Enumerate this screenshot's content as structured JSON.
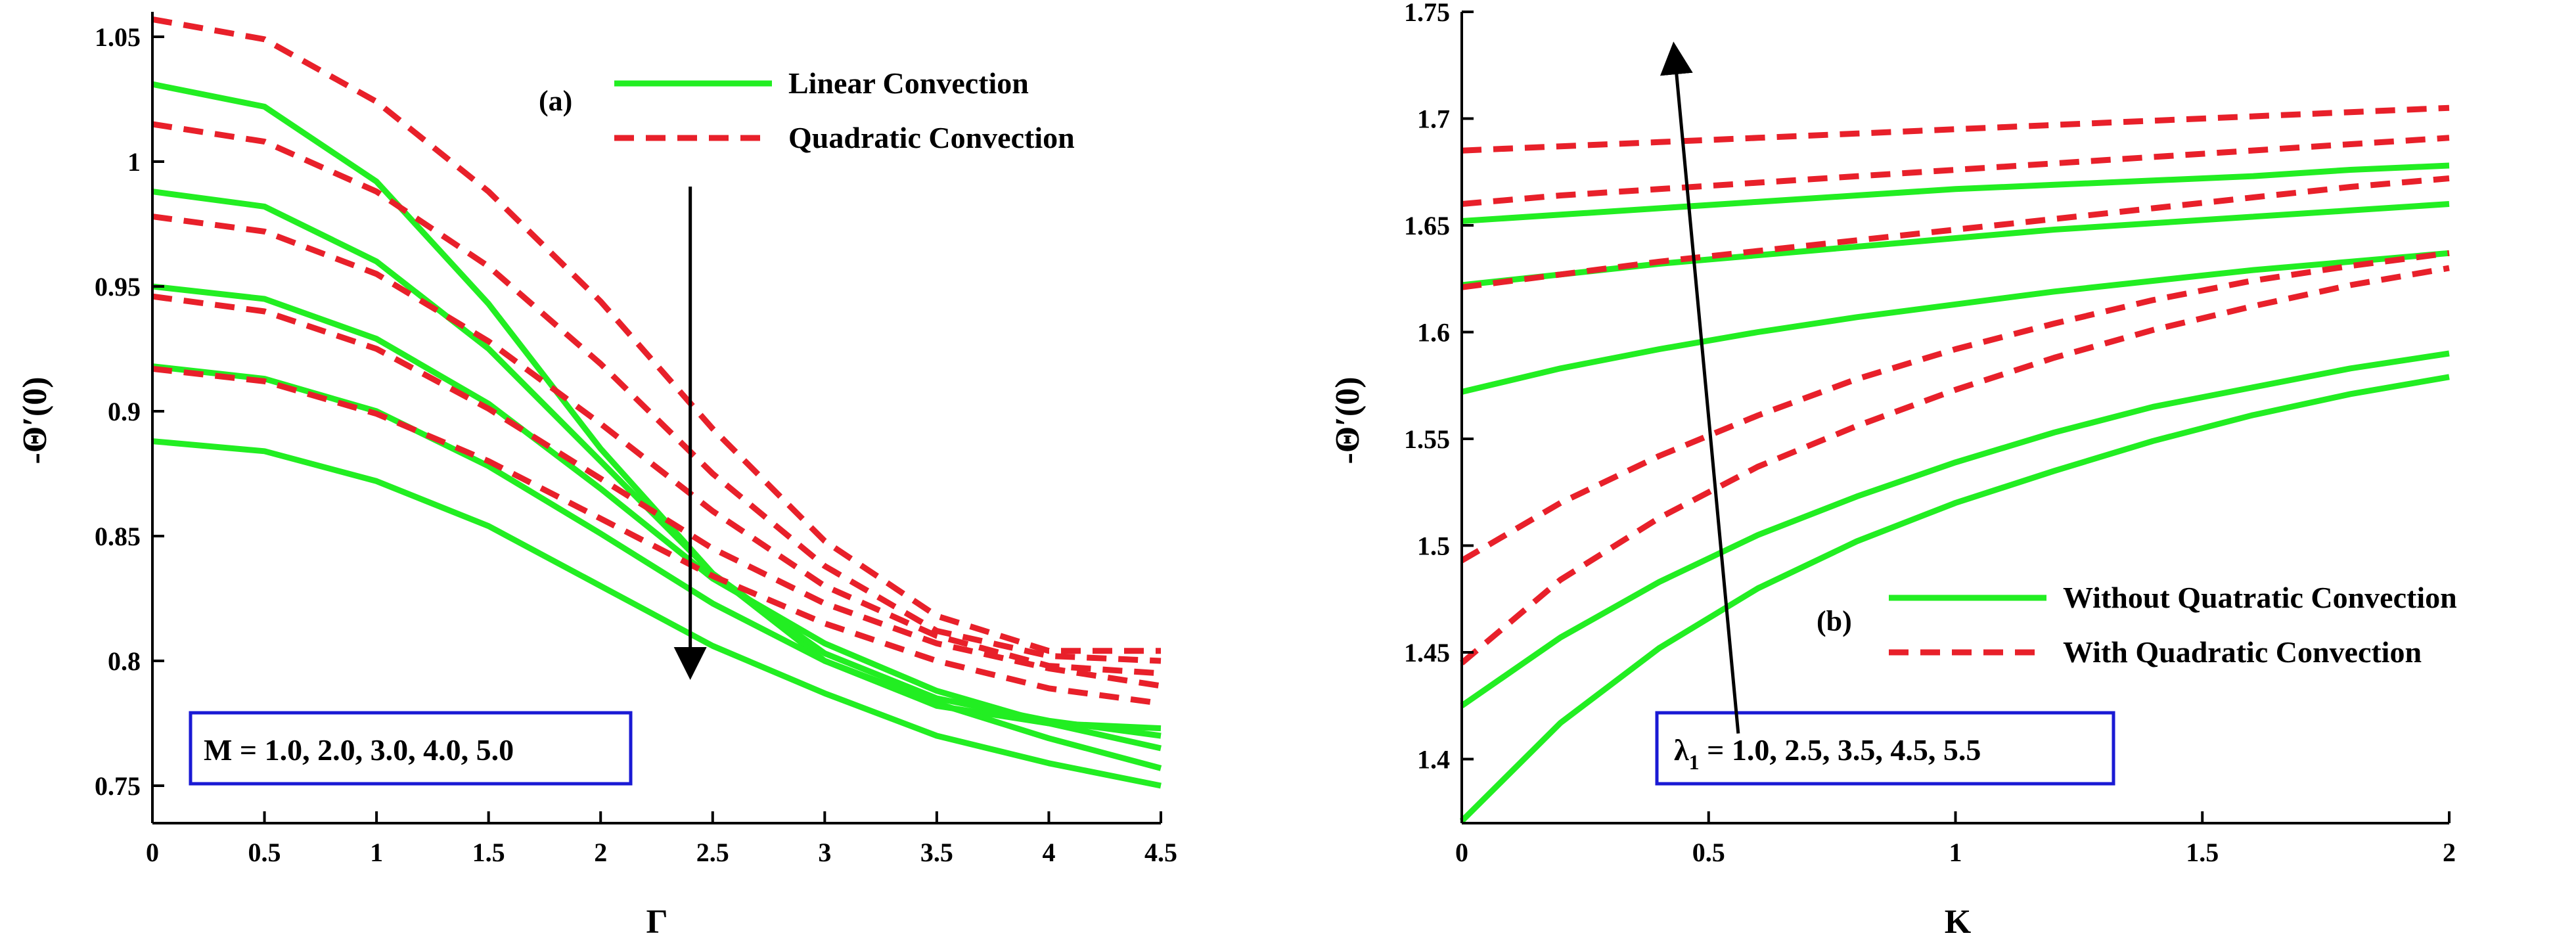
{
  "chart_data": [
    {
      "type": "line",
      "panel_label": "(a)",
      "xlabel": "Γ",
      "ylabel": "-Θ′(0)",
      "xlim": [
        0,
        4.5
      ],
      "ylim": [
        0.735,
        1.06
      ],
      "xticks": [
        0,
        0.5,
        1,
        1.5,
        2,
        2.5,
        3,
        3.5,
        4,
        4.5
      ],
      "xtick_labels": [
        "0",
        "0.5",
        "1",
        "1.5",
        "2",
        "2.5",
        "3",
        "3.5",
        "4",
        "4.5"
      ],
      "yticks": [
        0.75,
        0.8,
        0.85,
        0.9,
        0.95,
        1,
        1.05
      ],
      "ytick_labels": [
        "0.75",
        "0.8",
        "0.85",
        "0.9",
        "0.95",
        "1",
        "1.05"
      ],
      "legend": [
        "Linear Convection",
        "Quadratic Convection"
      ],
      "legend_position": "top-right",
      "parameter_box": "M = 1.0, 2.0, 3.0, 4.0, 5.0",
      "arrow": {
        "from": [
          2.4,
          0.99
        ],
        "to": [
          2.4,
          0.795
        ]
      },
      "x": [
        0,
        0.5,
        1,
        1.5,
        2,
        2.5,
        3,
        3.5,
        4,
        4.5
      ],
      "series": [
        {
          "name": "Linear Convection",
          "style": "solid",
          "values": [
            1.031,
            1.022,
            0.992,
            0.943,
            0.885,
            0.835,
            0.8,
            0.782,
            0.775,
            0.773
          ]
        },
        {
          "name": "Linear Convection",
          "style": "solid",
          "values": [
            0.988,
            0.982,
            0.96,
            0.925,
            0.88,
            0.835,
            0.803,
            0.785,
            0.776,
            0.77
          ]
        },
        {
          "name": "Linear Convection",
          "style": "solid",
          "values": [
            0.95,
            0.945,
            0.929,
            0.903,
            0.869,
            0.833,
            0.807,
            0.788,
            0.775,
            0.765
          ]
        },
        {
          "name": "Linear Convection",
          "style": "solid",
          "values": [
            0.918,
            0.913,
            0.9,
            0.878,
            0.851,
            0.823,
            0.8,
            0.783,
            0.769,
            0.757
          ]
        },
        {
          "name": "Linear Convection",
          "style": "solid",
          "values": [
            0.888,
            0.884,
            0.872,
            0.854,
            0.83,
            0.806,
            0.787,
            0.77,
            0.759,
            0.75
          ]
        },
        {
          "name": "Quadratic Convection",
          "style": "dashed",
          "values": [
            1.057,
            1.049,
            1.024,
            0.988,
            0.944,
            0.893,
            0.848,
            0.818,
            0.804,
            0.804
          ]
        },
        {
          "name": "Quadratic Convection",
          "style": "dashed",
          "values": [
            1.015,
            1.008,
            0.988,
            0.958,
            0.919,
            0.875,
            0.838,
            0.812,
            0.802,
            0.8
          ]
        },
        {
          "name": "Quadratic Convection",
          "style": "dashed",
          "values": [
            0.978,
            0.972,
            0.955,
            0.928,
            0.895,
            0.86,
            0.83,
            0.81,
            0.798,
            0.795
          ]
        },
        {
          "name": "Quadratic Convection",
          "style": "dashed",
          "values": [
            0.946,
            0.94,
            0.925,
            0.901,
            0.873,
            0.845,
            0.823,
            0.807,
            0.797,
            0.79
          ]
        },
        {
          "name": "Quadratic Convection",
          "style": "dashed",
          "values": [
            0.917,
            0.912,
            0.899,
            0.88,
            0.857,
            0.834,
            0.815,
            0.8,
            0.789,
            0.783
          ]
        }
      ]
    },
    {
      "type": "line",
      "panel_label": "(b)",
      "xlabel": "K",
      "ylabel": "-Θ′(0)",
      "xlim": [
        0,
        2
      ],
      "ylim": [
        1.37,
        1.75
      ],
      "xticks": [
        0,
        0.5,
        1,
        1.5,
        2
      ],
      "xtick_labels": [
        "0",
        "0.5",
        "1",
        "1.5",
        "2"
      ],
      "yticks": [
        1.4,
        1.45,
        1.5,
        1.55,
        1.6,
        1.65,
        1.7,
        1.75
      ],
      "ytick_labels": [
        "1.4",
        "1.45",
        "1.5",
        "1.55",
        "1.6",
        "1.65",
        "1.7",
        "1.75"
      ],
      "legend": [
        "Without Quatratic Convection",
        "With Quadratic Convection"
      ],
      "legend_position": "center-right",
      "parameter_box_prefix": "λ",
      "parameter_box_subscript": "1",
      "parameter_box_values": " = 1.0, 2.5, 3.5, 4.5, 5.5",
      "arrow": {
        "from": [
          0.56,
          1.412
        ],
        "to": [
          0.43,
          1.733
        ]
      },
      "x": [
        0,
        0.2,
        0.4,
        0.6,
        0.8,
        1.0,
        1.2,
        1.4,
        1.6,
        1.8,
        2.0
      ],
      "series": [
        {
          "name": "Without Quatratic Convection",
          "style": "solid",
          "values": [
            1.371,
            1.417,
            1.452,
            1.48,
            1.502,
            1.52,
            1.535,
            1.549,
            1.561,
            1.571,
            1.579
          ]
        },
        {
          "name": "Without Quatratic Convection",
          "style": "solid",
          "values": [
            1.425,
            1.457,
            1.483,
            1.505,
            1.523,
            1.539,
            1.553,
            1.565,
            1.574,
            1.583,
            1.59
          ]
        },
        {
          "name": "Without Quatratic Convection",
          "style": "solid",
          "values": [
            1.572,
            1.583,
            1.592,
            1.6,
            1.607,
            1.613,
            1.619,
            1.624,
            1.629,
            1.633,
            1.637
          ]
        },
        {
          "name": "Without Quatratic Convection",
          "style": "solid",
          "values": [
            1.622,
            1.627,
            1.632,
            1.636,
            1.64,
            1.644,
            1.648,
            1.651,
            1.654,
            1.657,
            1.66
          ]
        },
        {
          "name": "Without Quatratic Convection",
          "style": "solid",
          "values": [
            1.652,
            1.655,
            1.658,
            1.661,
            1.664,
            1.667,
            1.669,
            1.671,
            1.673,
            1.676,
            1.678
          ]
        },
        {
          "name": "With Quadratic Convection",
          "style": "dashed",
          "values": [
            1.445,
            1.484,
            1.513,
            1.537,
            1.556,
            1.573,
            1.588,
            1.601,
            1.612,
            1.622,
            1.63
          ]
        },
        {
          "name": "With Quadratic Convection",
          "style": "dashed",
          "values": [
            1.493,
            1.52,
            1.542,
            1.561,
            1.578,
            1.592,
            1.604,
            1.615,
            1.624,
            1.631,
            1.637
          ]
        },
        {
          "name": "With Quadratic Convection",
          "style": "dashed",
          "values": [
            1.621,
            1.627,
            1.633,
            1.638,
            1.643,
            1.648,
            1.653,
            1.658,
            1.663,
            1.668,
            1.672
          ]
        },
        {
          "name": "With Quadratic Convection",
          "style": "dashed",
          "values": [
            1.66,
            1.664,
            1.667,
            1.67,
            1.673,
            1.676,
            1.679,
            1.682,
            1.685,
            1.688,
            1.691
          ]
        },
        {
          "name": "With Quadratic Convection",
          "style": "dashed",
          "values": [
            1.685,
            1.687,
            1.689,
            1.691,
            1.693,
            1.695,
            1.697,
            1.699,
            1.701,
            1.703,
            1.705
          ]
        }
      ]
    }
  ],
  "colors": {
    "solid": "#22ee22",
    "dashed": "#e8202a",
    "box_border": "#1a1ad4",
    "axis": "#000000"
  }
}
